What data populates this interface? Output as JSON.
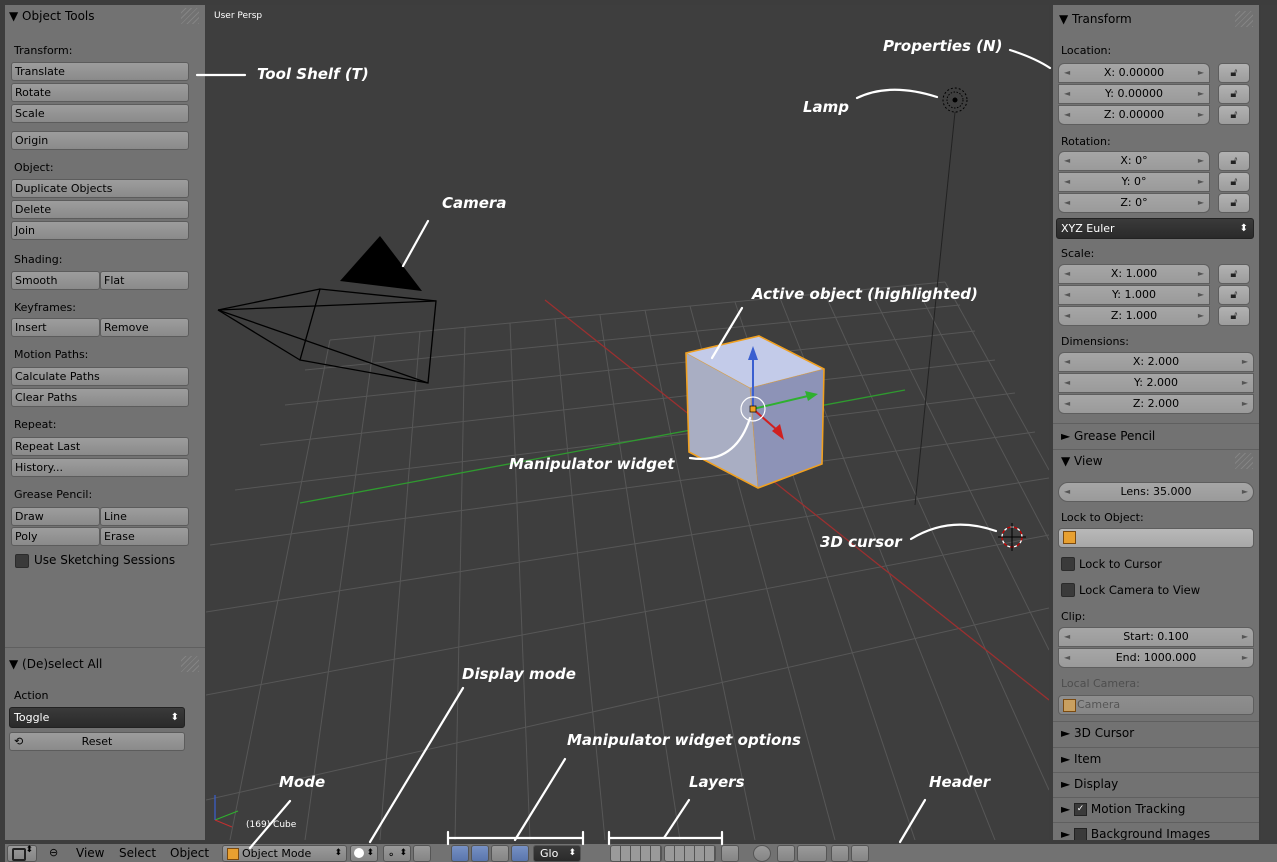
{
  "tool_shelf": {
    "panel_title": "▼ Object Tools",
    "transform": {
      "label": "Transform:",
      "translate": "Translate",
      "rotate": "Rotate",
      "scale": "Scale",
      "origin": "Origin"
    },
    "object": {
      "label": "Object:",
      "duplicate": "Duplicate Objects",
      "delete": "Delete",
      "join": "Join"
    },
    "shading": {
      "label": "Shading:",
      "smooth": "Smooth",
      "flat": "Flat"
    },
    "keyframes": {
      "label": "Keyframes:",
      "insert": "Insert",
      "remove": "Remove"
    },
    "motion_paths": {
      "label": "Motion Paths:",
      "calculate": "Calculate Paths",
      "clear": "Clear Paths"
    },
    "repeat": {
      "label": "Repeat:",
      "repeat_last": "Repeat Last",
      "history": "History..."
    },
    "grease_pencil": {
      "label": "Grease Pencil:",
      "draw": "Draw",
      "line": "Line",
      "poly": "Poly",
      "erase": "Erase",
      "sketching": "Use Sketching Sessions",
      "sketching_checked": false
    },
    "operator": {
      "title": "▼ (De)select All",
      "action_label": "Action",
      "action_value": "Toggle",
      "reset": "Reset"
    }
  },
  "viewport": {
    "view_name": "User Persp",
    "object_info": "(169) Cube",
    "colors": {
      "background": "#3e3e3e",
      "grid": "#555555",
      "x_axis": "#b03a3a",
      "y_axis": "#3fa03f",
      "active_object": "#b9c3e6",
      "selection_outline": "#f0a020"
    }
  },
  "properties": {
    "transform": {
      "title": "▼ Transform",
      "location_label": "Location:",
      "location": [
        "X: 0.00000",
        "Y: 0.00000",
        "Z: 0.00000"
      ],
      "rotation_label": "Rotation:",
      "rotation": [
        "X: 0°",
        "Y: 0°",
        "Z: 0°"
      ],
      "rotation_mode": "XYZ Euler",
      "scale_label": "Scale:",
      "scale": [
        "X: 1.000",
        "Y: 1.000",
        "Z: 1.000"
      ],
      "dimensions_label": "Dimensions:",
      "dimensions": [
        "X: 2.000",
        "Y: 2.000",
        "Z: 2.000"
      ]
    },
    "grease_pencil": "► Grease Pencil",
    "view": {
      "title": "▼ View",
      "lens": "Lens: 35.000",
      "lock_to_object_label": "Lock to Object:",
      "lock_to_cursor": "Lock to Cursor",
      "lock_camera_to_view": "Lock Camera to View",
      "clip_label": "Clip:",
      "clip_start": "Start: 0.100",
      "clip_end": "End: 1000.000",
      "local_camera_label": "Local Camera:",
      "local_camera_value": "Camera"
    },
    "collapsed": [
      "► 3D Cursor",
      "► Item",
      "► Display"
    ],
    "motion_tracking": "Motion Tracking",
    "motion_tracking_checked": true,
    "background_images": "Background Images"
  },
  "header": {
    "menus": [
      "View",
      "Select",
      "Object"
    ],
    "mode": "Object Mode",
    "orientation": "Glo"
  },
  "annotations": {
    "tool_shelf": "Tool Shelf (T)",
    "properties": "Properties (N)",
    "lamp": "Lamp",
    "camera": "Camera",
    "active_object": "Active object (highlighted)",
    "manipulator": "Manipulator widget",
    "cursor": "3D cursor",
    "display_mode": "Display mode",
    "manipulator_options": "Manipulator widget options",
    "mode": "Mode",
    "layers": "Layers",
    "header": "Header"
  }
}
